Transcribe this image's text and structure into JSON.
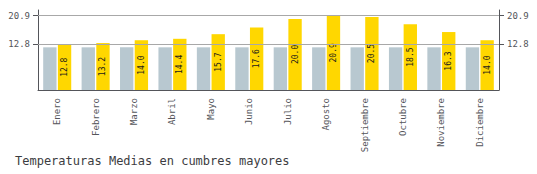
{
  "chart_data": {
    "type": "bar",
    "title": "Temperaturas Medias en cumbres mayores",
    "categories": [
      "Enero",
      "Febrero",
      "Marzo",
      "Abril",
      "Mayo",
      "Junio",
      "Julio",
      "Agosto",
      "Septiembre",
      "Octubre",
      "Noviembre",
      "Diciembre"
    ],
    "series": [
      {
        "color": "#B8C8D0",
        "values": [
          12.0,
          12.0,
          12.0,
          12.0,
          12.0,
          12.0,
          12.0,
          12.0,
          12.0,
          12.0,
          12.0,
          12.0
        ]
      },
      {
        "color": "#FFD700",
        "values": [
          12.8,
          13.2,
          14.0,
          14.4,
          15.7,
          17.6,
          20.0,
          20.9,
          20.5,
          18.5,
          16.3,
          14.0
        ],
        "data_labels": true,
        "value_labels": [
          "12.8",
          "13.2",
          "14.0",
          "14.4",
          "15.7",
          "17.6",
          "20.0",
          "20.9",
          "20.5",
          "18.5",
          "16.3",
          "14.0"
        ]
      }
    ],
    "ylim": [
      0,
      22.5
    ],
    "yticks": [
      12.8,
      20.9
    ],
    "grid": true
  }
}
